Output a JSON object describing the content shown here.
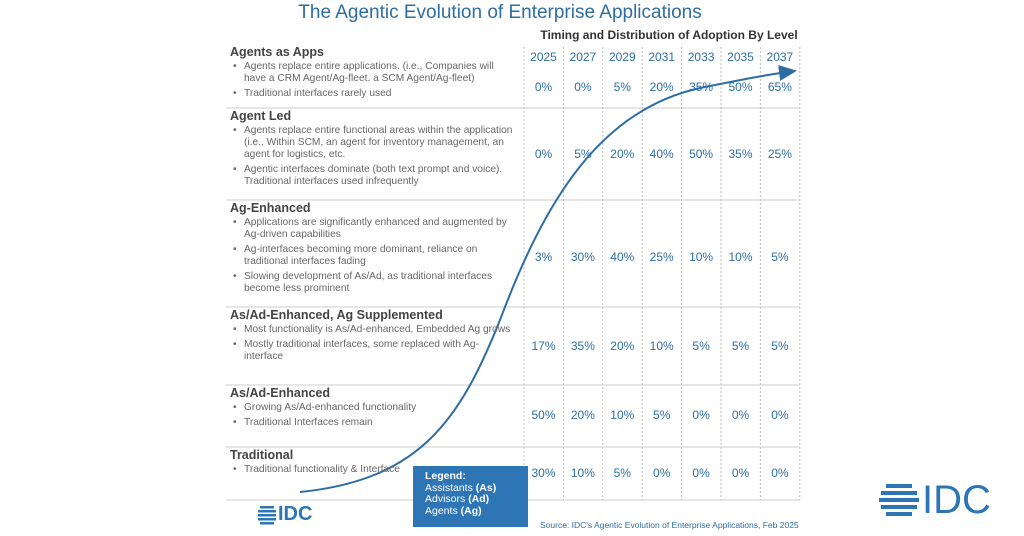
{
  "title": "The Agentic Evolution of Enterprise Applications",
  "table": {
    "heading": "Timing and Distribution of Adoption By Level",
    "years": [
      "2025",
      "2027",
      "2029",
      "2031",
      "2033",
      "2035",
      "2037"
    ],
    "rows": [
      {
        "name": "Agents as Apps",
        "bullets": [
          "Agents replace entire applications.  (i.e., Companies will have a CRM Agent/Ag-fleet.  a SCM Agent/Ag-fleet)",
          "Traditional interfaces rarely used"
        ],
        "values": [
          "0%",
          "0%",
          "5%",
          "20%",
          "35%",
          "50%",
          "65%"
        ]
      },
      {
        "name": "Agent Led",
        "bullets": [
          "Agents replace entire functional areas within the application (i.e., Within SCM, an agent for inventory management, an agent for logistics, etc.",
          "Agentic interfaces dominate (both text prompt and voice).  Traditional interfaces used infrequently"
        ],
        "values": [
          "0%",
          "5%",
          "20%",
          "40%",
          "50%",
          "35%",
          "25%"
        ]
      },
      {
        "name": "Ag-Enhanced",
        "bullets": [
          "Applications are significantly enhanced and augmented by Ag-driven capabilities",
          "Ag-interfaces becoming more dominant, reliance on traditional interfaces fading",
          "Slowing development of As/Ad, as traditional interfaces become less prominent"
        ],
        "values": [
          "3%",
          "30%",
          "40%",
          "25%",
          "10%",
          "10%",
          "5%"
        ]
      },
      {
        "name": "As/Ad-Enhanced, Ag Supplemented",
        "bullets": [
          "Most functionality is As/Ad-enhanced, Embedded Ag grows",
          "Mostly traditional interfaces, some replaced with Ag-interface"
        ],
        "values": [
          "17%",
          "35%",
          "20%",
          "10%",
          "5%",
          "5%",
          "5%"
        ]
      },
      {
        "name": "As/Ad-Enhanced",
        "bullets": [
          "Growing As/Ad-enhanced functionality",
          "Traditional Interfaces remain"
        ],
        "values": [
          "50%",
          "20%",
          "10%",
          "5%",
          "0%",
          "0%",
          "0%"
        ]
      },
      {
        "name": "Traditional",
        "bullets": [
          "Traditional functionality & Interface"
        ],
        "values": [
          "30%",
          "10%",
          "5%",
          "0%",
          "0%",
          "0%",
          "0%"
        ]
      }
    ]
  },
  "legend": {
    "title": "Legend:",
    "items": [
      {
        "label": "Assistants",
        "abbr": "(As)"
      },
      {
        "label": "Advisors",
        "abbr": "(Ad)"
      },
      {
        "label": "Agents",
        "abbr": "(Ag)"
      }
    ]
  },
  "source": "Source: IDC's Agentic Evolution of Enterprise Applications,  Feb 2025",
  "logo_small": "IDC",
  "logo_large": "IDC"
}
